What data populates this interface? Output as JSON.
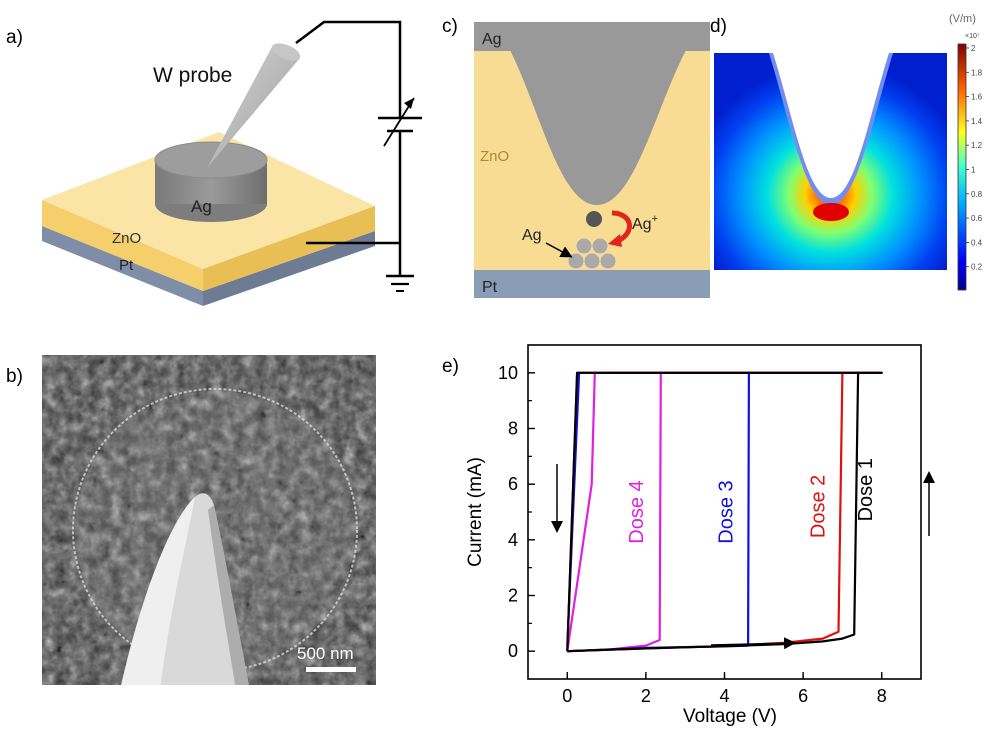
{
  "panels": {
    "a": {
      "label": "a)",
      "probe_label": "W probe",
      "layers": {
        "electrode": "Ag",
        "oxide": "ZnO",
        "bottom": "Pt"
      },
      "colors": {
        "oxide": "#f8d77e",
        "bottom": "#8f9fb7",
        "electrode": "#8c8c8c",
        "probe": "#b0b0b0"
      }
    },
    "b": {
      "label": "b)",
      "scalebar_label": "500 nm"
    },
    "c": {
      "label": "c)",
      "top_label": "Ag",
      "oxide_label": "ZnO",
      "bottom_label": "Pt",
      "cluster_label": "Ag",
      "ion_label": "Ag",
      "ion_charge": "+",
      "colors": {
        "oxide": "#f9dc94",
        "metal": "#999999",
        "bottom": "#8a9cb6",
        "arrow": "#e0261b"
      }
    },
    "d": {
      "label": "d)",
      "unit": "(V/m)",
      "exponent": "×10⁷",
      "ticks": [
        "2",
        "1.8",
        "1.6",
        "1.4",
        "1.2",
        "1",
        "0.8",
        "0.6",
        "0.4",
        "0.2"
      ]
    },
    "e": {
      "label": "e)",
      "chart_data": {
        "type": "line",
        "xlabel": "Voltage (V)",
        "ylabel": "Current (mA)",
        "xlim": [
          -1,
          9
        ],
        "ylim": [
          -1,
          11
        ],
        "xticks": [
          0,
          2,
          4,
          6,
          8
        ],
        "yticks": [
          0,
          2,
          4,
          6,
          8,
          10
        ],
        "series": [
          {
            "name": "Dose 1",
            "color": "#000000",
            "points": [
              [
                0,
                0
              ],
              [
                2,
                0.1
              ],
              [
                4,
                0.18
              ],
              [
                5.5,
                0.25
              ],
              [
                6.5,
                0.35
              ],
              [
                7.0,
                0.45
              ],
              [
                7.3,
                0.6
              ],
              [
                7.4,
                10
              ],
              [
                8.0,
                10
              ],
              [
                0.25,
                10
              ],
              [
                0,
                0
              ]
            ]
          },
          {
            "name": "Dose 2",
            "color": "#e01010",
            "points": [
              [
                0,
                0
              ],
              [
                2,
                0.1
              ],
              [
                4,
                0.18
              ],
              [
                5.5,
                0.3
              ],
              [
                6.5,
                0.45
              ],
              [
                6.9,
                0.7
              ],
              [
                7.0,
                10
              ],
              [
                8.0,
                10
              ],
              [
                0.25,
                10
              ],
              [
                0,
                0
              ]
            ]
          },
          {
            "name": "Dose 3",
            "color": "#1010e0",
            "points": [
              [
                0,
                0
              ],
              [
                2,
                0.12
              ],
              [
                4,
                0.17
              ],
              [
                4.6,
                0.2
              ],
              [
                4.62,
                10
              ],
              [
                8.0,
                10
              ],
              [
                0.3,
                10
              ],
              [
                0,
                0.2
              ]
            ]
          },
          {
            "name": "Dose 4",
            "color": "#e020e0",
            "points": [
              [
                0,
                0
              ],
              [
                1,
                0.05
              ],
              [
                2,
                0.2
              ],
              [
                2.35,
                0.4
              ],
              [
                2.38,
                10
              ],
              [
                8.0,
                10
              ],
              [
                0.7,
                10
              ],
              [
                0.62,
                6
              ],
              [
                0,
                0
              ]
            ]
          }
        ]
      }
    }
  }
}
